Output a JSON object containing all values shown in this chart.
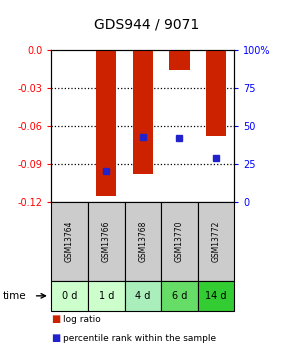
{
  "title": "GDS944 / 9071",
  "samples": [
    "GSM13764",
    "GSM13766",
    "GSM13768",
    "GSM13770",
    "GSM13772"
  ],
  "time_labels": [
    "0 d",
    "1 d",
    "4 d",
    "6 d",
    "14 d"
  ],
  "log_ratios": [
    0.0,
    -0.115,
    -0.098,
    -0.016,
    -0.068
  ],
  "percentile_ranks": [
    null,
    20,
    43,
    42,
    29
  ],
  "ylim_left": [
    -0.12,
    0.0
  ],
  "ylim_right": [
    0,
    100
  ],
  "left_ticks": [
    0.0,
    -0.03,
    -0.06,
    -0.09,
    -0.12
  ],
  "right_ticks": [
    100,
    75,
    50,
    25,
    0
  ],
  "bar_color": "#cc2200",
  "dot_color": "#2222cc",
  "sample_box_color": "#cccccc",
  "time_box_colors": [
    "#ccffcc",
    "#ccffcc",
    "#aaeebb",
    "#66dd66",
    "#33cc33"
  ],
  "title_fontsize": 10,
  "tick_fontsize": 7,
  "label_fontsize": 7
}
